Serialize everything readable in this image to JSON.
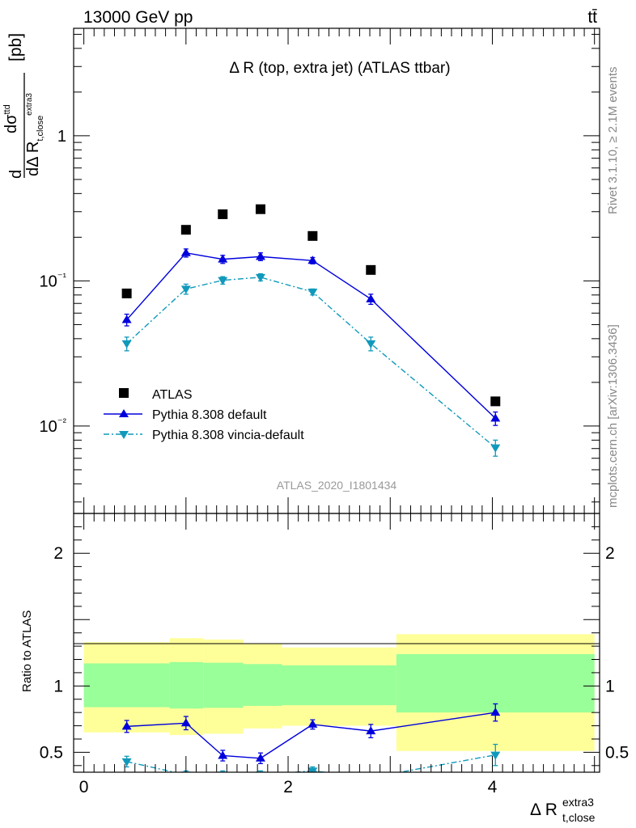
{
  "header": {
    "energy_label": "13000 GeV pp",
    "process_label": "tt̄",
    "plot_title": "Δ R (top, extra jet) (ATLAS ttbar)",
    "analysis_id": "ATLAS_2020_I1801434",
    "side_note_top": "Rivet 3.1.10, ≥ 2.1M events",
    "side_note_bottom": "mcplots.cern.ch [arXiv:1306.3436]"
  },
  "axes": {
    "main_ylabel": "[pb]",
    "ratio_ylabel": "Ratio to ATLAS",
    "xlabel": "Δ R",
    "xlabel_sup": "extra3",
    "xlabel_sub": "t,close"
  },
  "legend": {
    "atlas": "ATLAS",
    "pythia_default": "Pythia 8.308 default",
    "pythia_vincia": "Pythia 8.308 vincia-default"
  },
  "colors": {
    "data": "#000000",
    "pythia_default": "#0000dd",
    "pythia_vincia": "#1199bb",
    "band_inner": "#99ff99",
    "band_outer": "#ffff99"
  },
  "chart_data": [
    {
      "type": "scatter",
      "title": "Δ R (top, extra jet) (ATLAS ttbar)",
      "ylabel": "[pb]",
      "yscale": "log",
      "xlim": [
        -0.1,
        5.05
      ],
      "ylim": [
        0.0025,
        5.5
      ],
      "y_ticks": [
        {
          "value": 1,
          "label": "1"
        },
        {
          "value": 0.1,
          "label": "10⁻¹"
        },
        {
          "value": 0.01,
          "label": "10⁻²"
        }
      ],
      "legend_position": "lower-left",
      "series": [
        {
          "name": "ATLAS",
          "marker": "square",
          "x": [
            0.42,
            1.0,
            1.36,
            1.73,
            2.24,
            2.81,
            4.03
          ],
          "y": [
            0.082,
            0.225,
            0.288,
            0.312,
            0.204,
            0.119,
            0.0148
          ]
        },
        {
          "name": "Pythia 8.308 default",
          "marker": "triangle-up",
          "x": [
            0.42,
            1.0,
            1.36,
            1.73,
            2.24,
            2.81,
            4.03
          ],
          "y": [
            0.054,
            0.156,
            0.141,
            0.147,
            0.138,
            0.075,
            0.0113
          ],
          "err": [
            0.005,
            0.01,
            0.009,
            0.009,
            0.007,
            0.006,
            0.0012
          ]
        },
        {
          "name": "Pythia 8.308 vincia-default",
          "marker": "triangle-down",
          "x": [
            0.42,
            1.0,
            1.36,
            1.73,
            2.24,
            2.81,
            4.03
          ],
          "y": [
            0.037,
            0.088,
            0.101,
            0.106,
            0.084,
            0.037,
            0.0071
          ],
          "err": [
            0.004,
            0.007,
            0.006,
            0.006,
            0.004,
            0.004,
            0.0009
          ]
        }
      ]
    },
    {
      "type": "scatter",
      "ylabel": "Ratio to ATLAS",
      "xlabel": "Δ R t,close extra3",
      "xlim": [
        -0.1,
        5.05
      ],
      "ylim": [
        0.35,
        2.3
      ],
      "x_ticks": [
        0,
        2,
        4
      ],
      "y_ticks": [
        0.5,
        1,
        2
      ],
      "bands": [
        {
          "x": [
            0.0,
            0.84
          ],
          "inner": [
            0.84,
            1.17
          ],
          "outer": [
            0.65,
            1.33
          ]
        },
        {
          "x": [
            0.84,
            1.17
          ],
          "inner": [
            0.83,
            1.18
          ],
          "outer": [
            0.63,
            1.36
          ]
        },
        {
          "x": [
            1.17,
            1.56
          ],
          "inner": [
            0.835,
            1.175
          ],
          "outer": [
            0.64,
            1.35
          ]
        },
        {
          "x": [
            1.56,
            1.94
          ],
          "inner": [
            0.85,
            1.165
          ],
          "outer": [
            0.68,
            1.32
          ]
        },
        {
          "x": [
            1.94,
            3.06
          ],
          "inner": [
            0.855,
            1.155
          ],
          "outer": [
            0.7,
            1.29
          ]
        },
        {
          "x": [
            3.06,
            5.0
          ],
          "inner": [
            0.8,
            1.24
          ],
          "outer": [
            0.51,
            1.39
          ]
        }
      ],
      "series": [
        {
          "name": "Pythia 8.308 default",
          "x": [
            0.42,
            1.0,
            1.36,
            1.73,
            2.24,
            2.81,
            4.03
          ],
          "y": [
            0.695,
            0.72,
            0.475,
            0.455,
            0.71,
            0.66,
            0.8
          ],
          "err": [
            0.045,
            0.05,
            0.04,
            0.04,
            0.035,
            0.05,
            0.065
          ]
        },
        {
          "name": "Pythia 8.308 vincia-default",
          "x": [
            0.42,
            1.0,
            1.36,
            1.73,
            2.24,
            2.81,
            4.03
          ],
          "y": [
            0.43,
            0.33,
            0.33,
            0.33,
            0.36,
            0.31,
            0.48
          ],
          "err": [
            0.04,
            0.03,
            0.03,
            0.03,
            0.03,
            0.03,
            0.08
          ]
        }
      ]
    }
  ]
}
